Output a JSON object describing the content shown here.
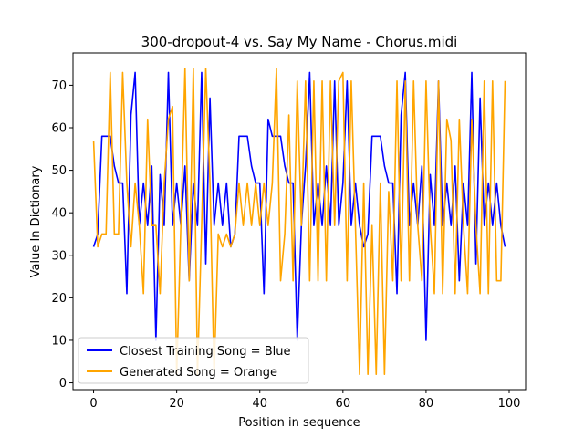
{
  "chart_data": {
    "type": "line",
    "title": "300-dropout-4 vs. Say My Name - Chorus.midi",
    "xlabel": "Position in sequence",
    "ylabel": "Value In Dictionary",
    "xlim": [
      -4.95,
      103.95
    ],
    "ylim": [
      -1.6,
      77.6
    ],
    "xticks": [
      0,
      20,
      40,
      60,
      80,
      100
    ],
    "yticks": [
      0,
      10,
      20,
      30,
      40,
      50,
      60,
      70
    ],
    "grid": false,
    "legend_position": "lower-left",
    "x": [
      0,
      1,
      2,
      3,
      4,
      5,
      6,
      7,
      8,
      9,
      10,
      11,
      12,
      13,
      14,
      15,
      16,
      17,
      18,
      19,
      20,
      21,
      22,
      23,
      24,
      25,
      26,
      27,
      28,
      29,
      30,
      31,
      32,
      33,
      34,
      35,
      36,
      37,
      38,
      39,
      40,
      41,
      42,
      43,
      44,
      45,
      46,
      47,
      48,
      49,
      50,
      51,
      52,
      53,
      54,
      55,
      56,
      57,
      58,
      59,
      60,
      61,
      62,
      63,
      64,
      65,
      66,
      67,
      68,
      69,
      70,
      71,
      72,
      73,
      74,
      75,
      76,
      77,
      78,
      79,
      80,
      81,
      82,
      83,
      84,
      85,
      86,
      87,
      88,
      89,
      90,
      91,
      92,
      93,
      94,
      95,
      96,
      97,
      98,
      99
    ],
    "series": [
      {
        "name": "Closest Training Song = Blue",
        "color": "#0000ff",
        "values": [
          32,
          35,
          58,
          58,
          58,
          51,
          47,
          47,
          21,
          63,
          73,
          37,
          47,
          37,
          51,
          10,
          49,
          37,
          73,
          37,
          47,
          37,
          51,
          24,
          47,
          37,
          73,
          28,
          67,
          37,
          47,
          37,
          47,
          32,
          35,
          58,
          58,
          58,
          51,
          47,
          47,
          21,
          62,
          58,
          58,
          58,
          51,
          47,
          47,
          10,
          37,
          51,
          73,
          37,
          47,
          37,
          51,
          37,
          71,
          37,
          47,
          71,
          37,
          47,
          37,
          32,
          35,
          58,
          58,
          58,
          51,
          47,
          47,
          21,
          63,
          73,
          37,
          47,
          37,
          51,
          10,
          49,
          37,
          71,
          37,
          47,
          37,
          51,
          24,
          47,
          37,
          73,
          28,
          67,
          37,
          47,
          37,
          47,
          37,
          32
        ]
      },
      {
        "name": "Generated Song = Orange",
        "color": "#ffa500",
        "values": [
          57,
          32,
          35,
          35,
          73,
          35,
          35,
          73,
          47,
          32,
          47,
          37,
          21,
          62,
          37,
          37,
          21,
          47,
          62,
          65,
          2,
          37,
          74,
          24,
          74,
          2,
          37,
          74,
          47,
          2,
          35,
          32,
          35,
          32,
          35,
          47,
          37,
          47,
          37,
          47,
          37,
          47,
          37,
          47,
          74,
          24,
          35,
          63,
          24,
          71,
          37,
          71,
          24,
          71,
          24,
          71,
          24,
          71,
          37,
          71,
          73,
          24,
          71,
          37,
          2,
          47,
          2,
          37,
          2,
          47,
          2,
          45,
          24,
          71,
          24,
          71,
          24,
          71,
          37,
          24,
          71,
          37,
          21,
          71,
          21,
          62,
          57,
          21,
          62,
          37,
          21,
          62,
          37,
          21,
          71,
          21,
          71,
          24,
          24,
          71
        ]
      }
    ]
  }
}
